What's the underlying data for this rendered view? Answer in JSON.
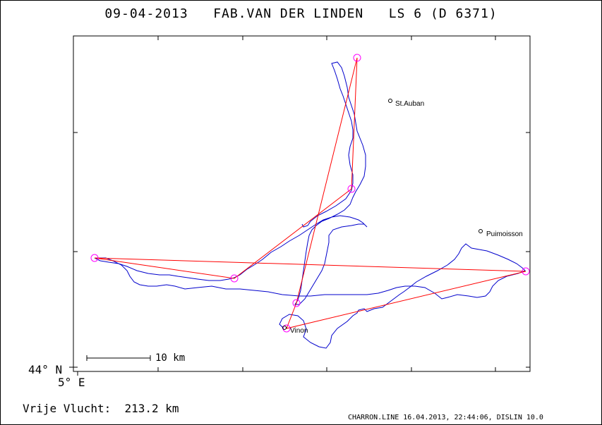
{
  "title": {
    "date": "09-04-2013",
    "pilot": "FAB.VAN DER LINDEN",
    "glider": "LS 6 (D 6371)"
  },
  "towns": [
    {
      "name": "St.Auban"
    },
    {
      "name": "Puimoisson"
    },
    {
      "name": "Vinon"
    }
  ],
  "scale_label": "10 km",
  "grid_labels": {
    "lat": "44° N",
    "lon": "5° E"
  },
  "distance": {
    "label": "Vrije Vlucht:",
    "value": "213.2 km"
  },
  "footer": "CHARRON.LINE 16.04.2013, 22:44:06, DISLIN 10.0",
  "colors": {
    "track": "#0000cc",
    "task": "#ff0000",
    "turnpoint": "#ff00ff",
    "axes": "#000000"
  }
}
